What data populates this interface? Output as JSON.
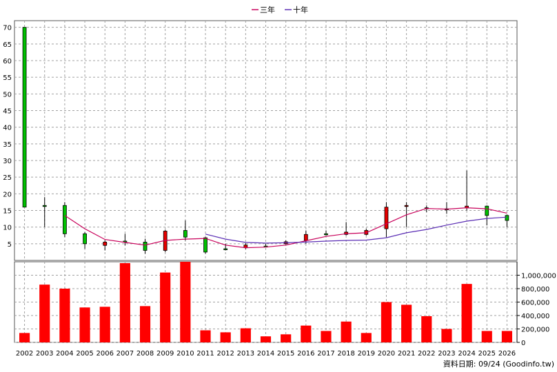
{
  "chart_data": [
    {
      "type": "candlestick",
      "categories": [
        "2002",
        "2003",
        "2004",
        "2005",
        "2006",
        "2007",
        "2008",
        "2009",
        "2010",
        "2011",
        "2012",
        "2013",
        "2014",
        "2015",
        "2016",
        "2017",
        "2018",
        "2019",
        "2020",
        "2021",
        "2022",
        "2023",
        "2024",
        "2025",
        "2026"
      ],
      "ohlc": [
        {
          "open": 16.0,
          "high": 70.0,
          "low": 16.0,
          "close": 70.0
        },
        {
          "open": 16.5,
          "high": 19.0,
          "low": 10.0,
          "close": 16.5
        },
        {
          "open": 8.0,
          "high": 17.5,
          "low": 7.0,
          "close": 16.5
        },
        {
          "open": 5.0,
          "high": 8.5,
          "low": 3.5,
          "close": 8.0
        },
        {
          "open": 5.5,
          "high": 6.0,
          "low": 3.0,
          "close": 4.5
        },
        {
          "open": 5.8,
          "high": 8.0,
          "low": 4.5,
          "close": 5.8
        },
        {
          "open": 3.0,
          "high": 6.5,
          "low": 2.0,
          "close": 5.5
        },
        {
          "open": 8.8,
          "high": 9.2,
          "low": 2.5,
          "close": 3.0
        },
        {
          "open": 7.0,
          "high": 12.0,
          "low": 6.0,
          "close": 9.0
        },
        {
          "open": 2.5,
          "high": 7.0,
          "low": 2.0,
          "close": 6.8
        },
        {
          "open": 3.5,
          "high": 5.0,
          "low": 3.0,
          "close": 3.5
        },
        {
          "open": 4.6,
          "high": 5.2,
          "low": 3.4,
          "close": 3.8
        },
        {
          "open": 4.3,
          "high": 5.0,
          "low": 4.0,
          "close": 4.3
        },
        {
          "open": 5.6,
          "high": 6.0,
          "low": 4.8,
          "close": 5.0
        },
        {
          "open": 7.8,
          "high": 9.0,
          "low": 5.0,
          "close": 6.0
        },
        {
          "open": 8.0,
          "high": 9.0,
          "low": 7.5,
          "close": 8.0
        },
        {
          "open": 8.5,
          "high": 11.5,
          "low": 7.5,
          "close": 7.8
        },
        {
          "open": 9.0,
          "high": 9.5,
          "low": 7.5,
          "close": 7.8
        },
        {
          "open": 16.0,
          "high": 17.5,
          "low": 7.0,
          "close": 9.5
        },
        {
          "open": 16.5,
          "high": 17.5,
          "low": 10.0,
          "close": 16.3
        },
        {
          "open": 15.8,
          "high": 16.5,
          "low": 14.5,
          "close": 15.5
        },
        {
          "open": 15.5,
          "high": 17.5,
          "low": 14.0,
          "close": 15.5
        },
        {
          "open": 16.3,
          "high": 27.0,
          "low": 15.0,
          "close": 15.8
        },
        {
          "open": 13.5,
          "high": 16.5,
          "low": 10.5,
          "close": 16.3
        },
        {
          "open": 12.0,
          "high": 13.8,
          "low": 10.0,
          "close": 13.5
        }
      ],
      "lines": [
        {
          "name": "三年",
          "color": "#c8005a",
          "start_index": 2,
          "values": [
            13.5,
            9.5,
            6.3,
            5.4,
            4.6,
            6.0,
            6.4,
            6.6,
            4.6,
            3.8,
            4.0,
            4.6,
            5.9,
            7.2,
            8.0,
            8.3,
            11.0,
            13.7,
            15.6,
            15.4,
            15.8,
            15.5,
            14.2
          ]
        },
        {
          "name": "十年",
          "color": "#5a2db4",
          "start_index": 9,
          "values": [
            7.9,
            6.4,
            5.4,
            5.2,
            5.3,
            5.5,
            5.8,
            6.0,
            6.1,
            6.8,
            8.3,
            9.3,
            10.6,
            11.8,
            12.6,
            13.0
          ]
        }
      ],
      "ylim": [
        0,
        72
      ],
      "yticks": [
        5,
        10,
        15,
        20,
        25,
        30,
        35,
        40,
        45,
        50,
        55,
        60,
        65,
        70
      ],
      "grid": true,
      "legend": {
        "position": "top-center",
        "entries": [
          "三年",
          "十年"
        ]
      },
      "up_color": "#00c000",
      "down_color": "#e60000"
    },
    {
      "type": "bar",
      "categories": [
        "2002",
        "2003",
        "2004",
        "2005",
        "2006",
        "2007",
        "2008",
        "2009",
        "2010",
        "2011",
        "2012",
        "2013",
        "2014",
        "2015",
        "2016",
        "2017",
        "2018",
        "2019",
        "2020",
        "2021",
        "2022",
        "2023",
        "2024",
        "2025",
        "2026"
      ],
      "values": [
        140000,
        860000,
        800000,
        520000,
        530000,
        1180000,
        540000,
        1040000,
        1200000,
        180000,
        150000,
        210000,
        90000,
        120000,
        250000,
        170000,
        310000,
        140000,
        600000,
        560000,
        390000,
        200000,
        870000,
        170000,
        170000
      ],
      "ylim": [
        0,
        1200000
      ],
      "yticks": [
        "0",
        "200,000",
        "400,000",
        "600,000",
        "800,000",
        "1,000,000"
      ],
      "color": "#ff0000",
      "grid": true
    }
  ],
  "xlabels": [
    "2002",
    "2003",
    "2004",
    "2005",
    "2006",
    "2007",
    "2008",
    "2009",
    "2010",
    "2011",
    "2012",
    "2013",
    "2014",
    "2015",
    "2016",
    "2017",
    "2018",
    "2019",
    "2020",
    "2021",
    "2022",
    "2023",
    "2024",
    "2025",
    "2026"
  ],
  "footer": "資料日期: 09/24 (Goodinfo.tw)"
}
